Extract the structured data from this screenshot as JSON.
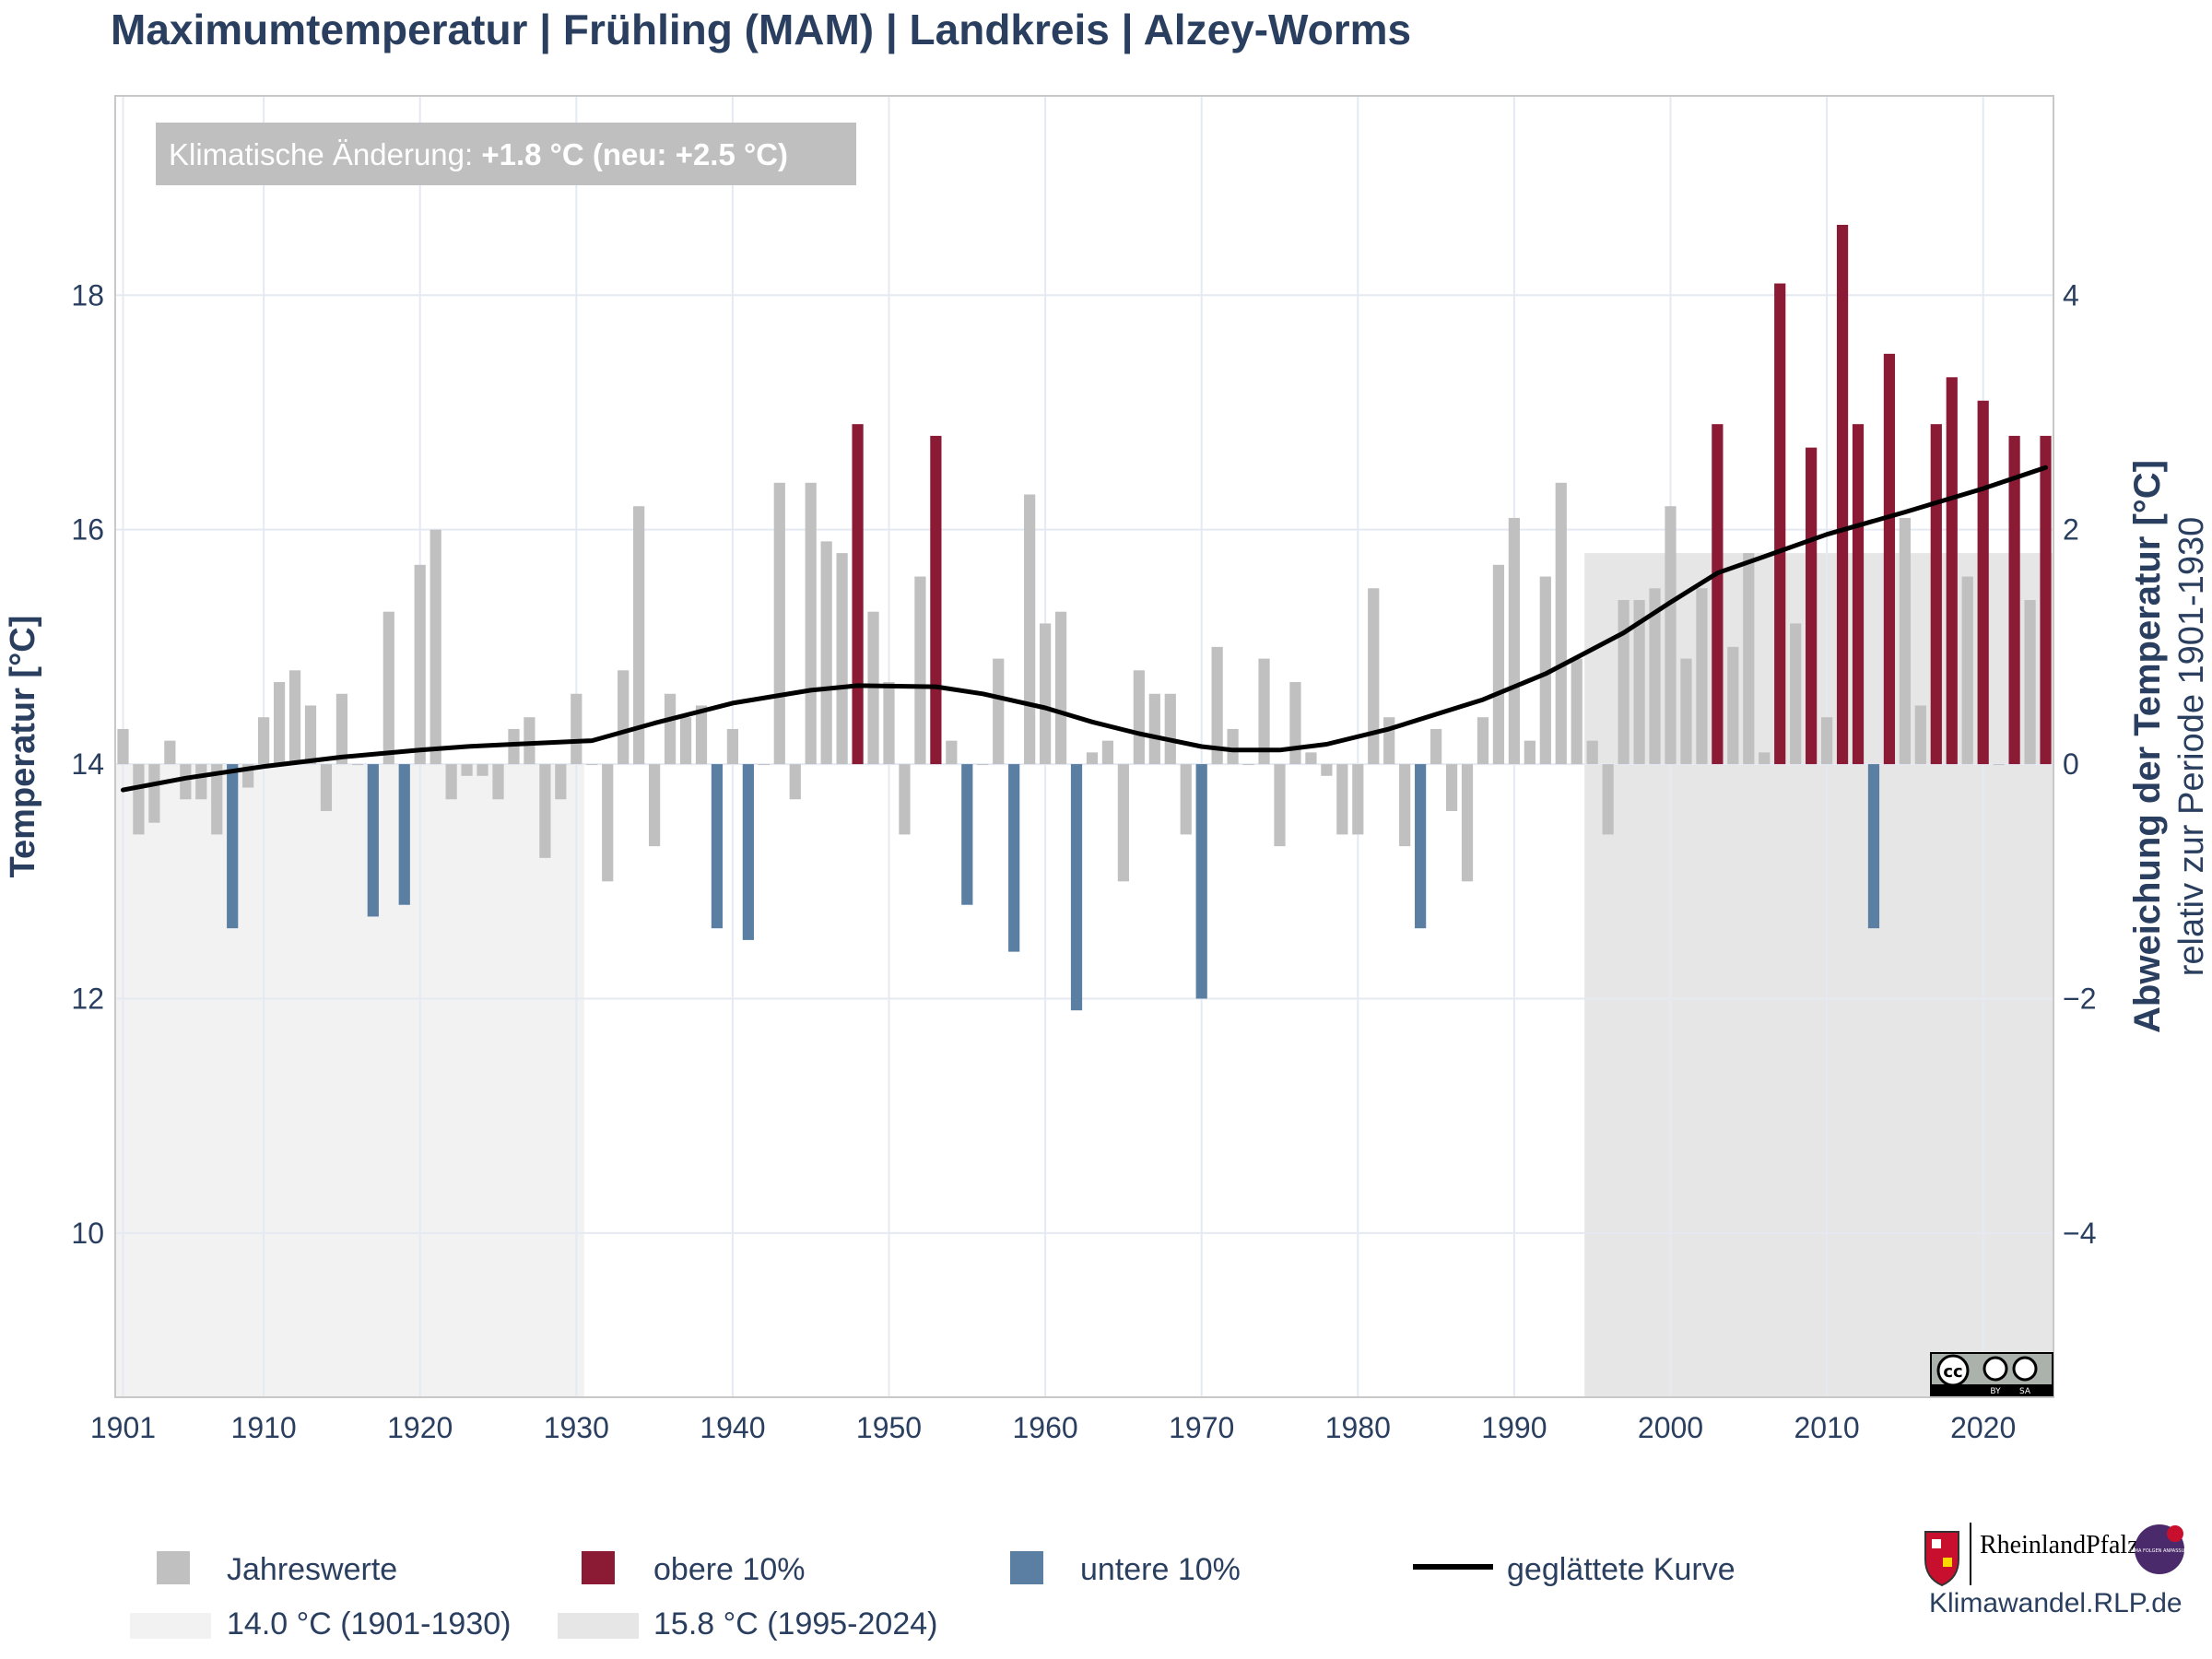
{
  "page": {
    "title": "Maximumtemperatur | Frühling (MAM) | Landkreis | Alzey-Worms",
    "annotation_prefix": "Klimatische Änderung: ",
    "annotation_value": "+1.8 °C (neu: +2.5 °C)",
    "website": "Klimawandel.RLP.de",
    "logo_text": "RheinlandPfalz",
    "badge_text": "KLIMA FOLGEN ANPASSUNG",
    "license_labels": [
      "BY",
      "SA"
    ]
  },
  "colors": {
    "normal": "#c0c0c0",
    "upper": "#8b1a35",
    "lower": "#5b7ea3",
    "trend": "#000000",
    "ref_early": "#f2f2f2",
    "ref_late": "#e6e6e6",
    "annotation_bg": "#bfbfbf"
  },
  "chart_data": {
    "type": "bar",
    "title": "Maximumtemperatur | Frühling (MAM) | Landkreis | Alzey-Worms",
    "ylabel": "Temperatur [°C]",
    "y2label": "Abweichung der Temperatur [°C]",
    "y2label_sub": "relativ zur Periode 1901-1930",
    "baseline": 14.0,
    "ylim": [
      8.6,
      19.7
    ],
    "xlim": [
      1900.5,
      2024.5
    ],
    "x_ticks": [
      1901,
      1910,
      1920,
      1930,
      1940,
      1950,
      1960,
      1970,
      1980,
      1990,
      2000,
      2010,
      2020
    ],
    "y_ticks": [
      10,
      12,
      14,
      16,
      18
    ],
    "y2_ticks": [
      -4,
      -2,
      0,
      2,
      4
    ],
    "grid": true,
    "legend_position": "bottom",
    "years": [
      1901,
      1902,
      1903,
      1904,
      1905,
      1906,
      1907,
      1908,
      1909,
      1910,
      1911,
      1912,
      1913,
      1914,
      1915,
      1916,
      1917,
      1918,
      1919,
      1920,
      1921,
      1922,
      1923,
      1924,
      1925,
      1926,
      1927,
      1928,
      1929,
      1930,
      1931,
      1932,
      1933,
      1934,
      1935,
      1936,
      1937,
      1938,
      1939,
      1940,
      1941,
      1942,
      1943,
      1944,
      1945,
      1946,
      1947,
      1948,
      1949,
      1950,
      1951,
      1952,
      1953,
      1954,
      1955,
      1956,
      1957,
      1958,
      1959,
      1960,
      1961,
      1962,
      1963,
      1964,
      1965,
      1966,
      1967,
      1968,
      1969,
      1970,
      1971,
      1972,
      1973,
      1974,
      1975,
      1976,
      1977,
      1978,
      1979,
      1980,
      1981,
      1982,
      1983,
      1984,
      1985,
      1986,
      1987,
      1988,
      1989,
      1990,
      1991,
      1992,
      1993,
      1994,
      1995,
      1996,
      1997,
      1998,
      1999,
      2000,
      2001,
      2002,
      2003,
      2004,
      2005,
      2006,
      2007,
      2008,
      2009,
      2010,
      2011,
      2012,
      2013,
      2014,
      2015,
      2016,
      2017,
      2018,
      2019,
      2020,
      2021,
      2022,
      2023,
      2024
    ],
    "values": [
      14.3,
      13.4,
      13.5,
      14.2,
      13.7,
      13.7,
      13.4,
      12.6,
      13.8,
      14.4,
      14.7,
      14.8,
      14.5,
      13.6,
      14.6,
      14.0,
      12.7,
      15.3,
      12.8,
      15.7,
      16.0,
      13.7,
      13.9,
      13.9,
      13.7,
      14.3,
      14.4,
      13.2,
      13.7,
      14.6,
      14.0,
      13.0,
      14.8,
      16.2,
      13.3,
      14.6,
      14.4,
      14.5,
      12.6,
      14.3,
      12.5,
      14.0,
      16.4,
      13.7,
      16.4,
      15.9,
      15.8,
      16.9,
      15.3,
      14.7,
      13.4,
      15.6,
      16.8,
      14.2,
      12.8,
      14.0,
      14.9,
      12.4,
      16.3,
      15.2,
      15.3,
      11.9,
      14.1,
      14.2,
      13.0,
      14.8,
      14.6,
      14.6,
      13.4,
      12.0,
      15.0,
      14.3,
      14.0,
      14.9,
      13.3,
      14.7,
      14.1,
      13.9,
      13.4,
      13.4,
      15.5,
      14.4,
      13.3,
      12.6,
      14.3,
      13.6,
      13.0,
      14.4,
      15.7,
      16.1,
      14.2,
      15.6,
      16.4,
      14.9,
      14.2,
      13.4,
      15.4,
      15.4,
      15.5,
      16.2,
      14.9,
      15.5,
      16.9,
      15.0,
      15.8,
      14.1,
      18.1,
      15.2,
      16.7,
      14.4,
      18.6,
      16.9,
      12.6,
      17.5,
      16.1,
      14.5,
      16.9,
      17.3,
      15.6,
      17.1,
      14.0,
      16.8,
      15.4,
      16.8
    ],
    "upper_10_years": [
      1948,
      1953,
      2003,
      2007,
      2009,
      2011,
      2012,
      2014,
      2017,
      2018,
      2020,
      2022,
      2024
    ],
    "lower_10_years": [
      1908,
      1917,
      1919,
      1939,
      1941,
      1955,
      1958,
      1962,
      1970,
      1984,
      2013
    ],
    "smoothed": {
      "x": [
        1901,
        1905,
        1910,
        1915,
        1920,
        1923,
        1926,
        1931,
        1935,
        1940,
        1945,
        1948,
        1953,
        1956,
        1960,
        1963,
        1966,
        1970,
        1972,
        1975,
        1978,
        1982,
        1988,
        1992,
        1997,
        2000,
        2003,
        2006,
        2010,
        2015,
        2020,
        2024
      ],
      "y": [
        13.78,
        13.88,
        13.98,
        14.06,
        14.12,
        14.15,
        14.17,
        14.2,
        14.35,
        14.52,
        14.63,
        14.67,
        14.66,
        14.6,
        14.48,
        14.36,
        14.26,
        14.15,
        14.12,
        14.12,
        14.17,
        14.3,
        14.55,
        14.77,
        15.12,
        15.38,
        15.63,
        15.77,
        15.96,
        16.15,
        16.35,
        16.53
      ]
    },
    "reference_periods": [
      {
        "start": 1901,
        "end": 1930,
        "value": 14.0
      },
      {
        "start": 1995,
        "end": 2024,
        "value": 15.8
      }
    ],
    "legend": [
      {
        "label": "Jahreswerte",
        "type": "square",
        "color_key": "normal"
      },
      {
        "label": "obere 10%",
        "type": "square",
        "color_key": "upper"
      },
      {
        "label": "untere 10%",
        "type": "square",
        "color_key": "lower"
      },
      {
        "label": "geglättete Kurve",
        "type": "line",
        "color_key": "trend"
      },
      {
        "label": "14.0 °C (1901-1930)",
        "type": "band",
        "color_key": "ref_early"
      },
      {
        "label": "15.8 °C (1995-2024)",
        "type": "band",
        "color_key": "ref_late"
      }
    ]
  }
}
